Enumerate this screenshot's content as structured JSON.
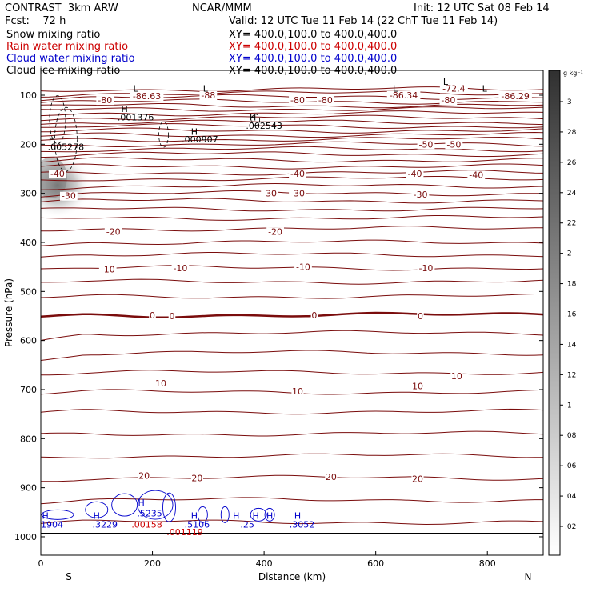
{
  "header": {
    "model": "CONTRAST  3km ARW",
    "org": "NCAR/MMM",
    "init": "Init: 12 UTC Sat 08 Feb 14",
    "fcst": "Fcst:    72 h",
    "valid": "Valid: 12 UTC Tue 11 Feb 14 (22 ChT Tue 11 Feb 14)"
  },
  "fields": [
    {
      "name": "Snow mixing ratio",
      "xy": "XY= 400.0,100.0 to 400.0,400.0",
      "color": "#000000"
    },
    {
      "name": "Rain water mixing ratio",
      "xy": "XY= 400.0,100.0 to 400.0,400.0",
      "color": "#cc0000"
    },
    {
      "name": "Cloud water mixing ratio",
      "xy": "XY= 400.0,100.0 to 400.0,400.0",
      "color": "#0000cc"
    },
    {
      "name": "Cloud ice mixing ratio",
      "xy": "XY= 400.0,100.0 to 400.0,400.0",
      "color": "#000000"
    }
  ],
  "colorbar": {
    "unit": "g kg⁻¹",
    "ticks": [
      ".3",
      ".28",
      ".26",
      ".24",
      ".22",
      ".2",
      ".18",
      ".16",
      ".14",
      ".12",
      ".1",
      ".08",
      ".06",
      ".04",
      ".02"
    ]
  },
  "chart_data": {
    "type": "cross-section contour",
    "xlabel": "Distance (km)",
    "ylabel": "Pressure (hPa)",
    "xlim": [
      0,
      900
    ],
    "ylim": [
      1050,
      50
    ],
    "xticks": [
      "0",
      "200",
      "400",
      "600",
      "800"
    ],
    "yticks": [
      "100",
      "200",
      "300",
      "400",
      "500",
      "600",
      "700",
      "800",
      "900",
      "1000"
    ],
    "end_labels": {
      "left": "S",
      "right": "N"
    },
    "contour_color": "#7a0c0c",
    "temperature_labels": [
      {
        "text": "-80",
        "x": 115,
        "p": 110
      },
      {
        "text": "-80",
        "x": 460,
        "p": 110
      },
      {
        "text": "-80",
        "x": 510,
        "p": 110
      },
      {
        "text": "-80",
        "x": 730,
        "p": 110
      },
      {
        "text": "-88",
        "x": 300,
        "p": 100
      },
      {
        "text": "-86.63",
        "x": 190,
        "p": 102
      },
      {
        "text": "-86.34",
        "x": 650,
        "p": 100
      },
      {
        "text": "-86.29",
        "x": 850,
        "p": 102
      },
      {
        "text": "-72.4",
        "x": 740,
        "p": 86
      },
      {
        "text": "-50",
        "x": 690,
        "p": 200
      },
      {
        "text": "-50",
        "x": 740,
        "p": 200
      },
      {
        "text": "-40",
        "x": 30,
        "p": 260
      },
      {
        "text": "-40",
        "x": 460,
        "p": 260
      },
      {
        "text": "-40",
        "x": 670,
        "p": 260
      },
      {
        "text": "-40",
        "x": 780,
        "p": 262
      },
      {
        "text": "-30",
        "x": 50,
        "p": 305
      },
      {
        "text": "-30",
        "x": 410,
        "p": 300
      },
      {
        "text": "-30",
        "x": 460,
        "p": 300
      },
      {
        "text": "-30",
        "x": 680,
        "p": 302
      },
      {
        "text": "-20",
        "x": 130,
        "p": 378
      },
      {
        "text": "-20",
        "x": 420,
        "p": 378
      },
      {
        "text": "-10",
        "x": 120,
        "p": 455
      },
      {
        "text": "-10",
        "x": 250,
        "p": 452
      },
      {
        "text": "-10",
        "x": 470,
        "p": 450
      },
      {
        "text": "-10",
        "x": 690,
        "p": 452
      },
      {
        "text": "0",
        "x": 200,
        "p": 548
      },
      {
        "text": "0",
        "x": 235,
        "p": 550
      },
      {
        "text": "0",
        "x": 490,
        "p": 548
      },
      {
        "text": "0",
        "x": 680,
        "p": 550
      },
      {
        "text": "10",
        "x": 215,
        "p": 687
      },
      {
        "text": "10",
        "x": 460,
        "p": 703
      },
      {
        "text": "10",
        "x": 675,
        "p": 693
      },
      {
        "text": "10",
        "x": 745,
        "p": 672
      },
      {
        "text": "20",
        "x": 185,
        "p": 875
      },
      {
        "text": "20",
        "x": 280,
        "p": 880
      },
      {
        "text": "20",
        "x": 520,
        "p": 878
      },
      {
        "text": "20",
        "x": 675,
        "p": 882
      }
    ],
    "ice_extrema": [
      {
        "text": "L",
        "x": 170,
        "p": 86
      },
      {
        "text": "L",
        "x": 295,
        "p": 86
      },
      {
        "text": "L",
        "x": 635,
        "p": 86
      },
      {
        "text": "L",
        "x": 795,
        "p": 86
      },
      {
        "text": "L",
        "x": 725,
        "p": 72
      },
      {
        "text": "H",
        "x": 150,
        "p": 128
      },
      {
        "text": ".001376",
        "x": 170,
        "p": 145
      },
      {
        "text": "H",
        "x": 380,
        "p": 145
      },
      {
        "text": ".002543",
        "x": 400,
        "p": 162
      },
      {
        "text": "H",
        "x": 275,
        "p": 174
      },
      {
        "text": ".000907",
        "x": 285,
        "p": 190
      },
      {
        "text": "H",
        "x": 20,
        "p": 190
      },
      {
        "text": ".005278",
        "x": 45,
        "p": 205
      }
    ],
    "cloud_water_extrema": [
      {
        "text": "H",
        "x": 8,
        "p": 957
      },
      {
        "text": "1904",
        "x": 20,
        "p": 975
      },
      {
        "text": "H",
        "x": 100,
        "p": 957
      },
      {
        "text": ".3229",
        "x": 115,
        "p": 975
      },
      {
        "text": "H",
        "x": 180,
        "p": 930
      },
      {
        "text": ".5235",
        "x": 195,
        "p": 952
      },
      {
        "text": "H",
        "x": 275,
        "p": 957
      },
      {
        "text": ".5106",
        "x": 280,
        "p": 975
      },
      {
        "text": "H",
        "x": 350,
        "p": 957
      },
      {
        "text": "H",
        "x": 385,
        "p": 957
      },
      {
        "text": "H",
        "x": 410,
        "p": 957
      },
      {
        "text": "H",
        "x": 460,
        "p": 957
      },
      {
        "text": ".25",
        "x": 370,
        "p": 975
      },
      {
        "text": ".3052",
        "x": 468,
        "p": 975
      }
    ],
    "rain_labels": [
      {
        "text": ".00158",
        "x": 190,
        "p": 975
      },
      {
        "text": ".001119",
        "x": 258,
        "p": 990
      }
    ]
  }
}
